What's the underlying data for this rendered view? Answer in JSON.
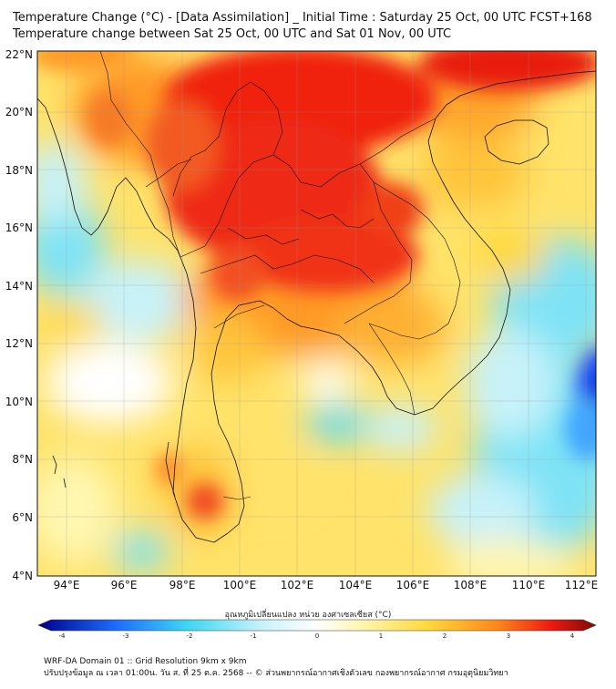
{
  "title_line1": "Temperature Change (°C) - [Data Assimilation] _ Initial Time : Saturday 25 Oct, 00 UTC FCST+168",
  "title_line2": "Temperature change between Sat 25 Oct, 00 UTC and Sat 01 Nov, 00 UTC",
  "lat_labels": [
    "22°N",
    "20°N",
    "18°N",
    "16°N",
    "14°N",
    "12°N",
    "10°N",
    "8°N",
    "6°N",
    "4°N"
  ],
  "lon_labels": [
    "94°E",
    "96°E",
    "98°E",
    "100°E",
    "102°E",
    "104°E",
    "106°E",
    "108°E",
    "110°E",
    "112°E"
  ],
  "colorbar": {
    "title": "อุณหภูมิเปลี่ยนแปลง หน่วย องศาเซลเซียส (°C)",
    "ticks": [
      "-4",
      "-3",
      "-2",
      "-1",
      "0",
      "1",
      "2",
      "3",
      "4"
    ],
    "colors": {
      "dark_blue": "#00008b",
      "blue": "#1e6cff",
      "cyan": "#3fd8f2",
      "light_cyan": "#c7f2fa",
      "white": "#ffffff",
      "light_yellow": "#fff6b0",
      "yellow": "#ffd83a",
      "orange": "#ff8a1a",
      "red": "#ee1a10",
      "dark_red": "#7a0a0a"
    }
  },
  "footer_line1": "WRF-DA Domain 01 :: Grid Resolution 9km x 9km",
  "footer_line2": "ปรับปรุงข้อมูล ณ เวลา 01:00น. วัน ส. ที่ 25 ต.ค. 2568 -- © ส่วนพยากรณ์อากาศเชิงตัวเลข กองพยากรณ์อากาศ กรมอุตุนิยมวิทยา"
}
